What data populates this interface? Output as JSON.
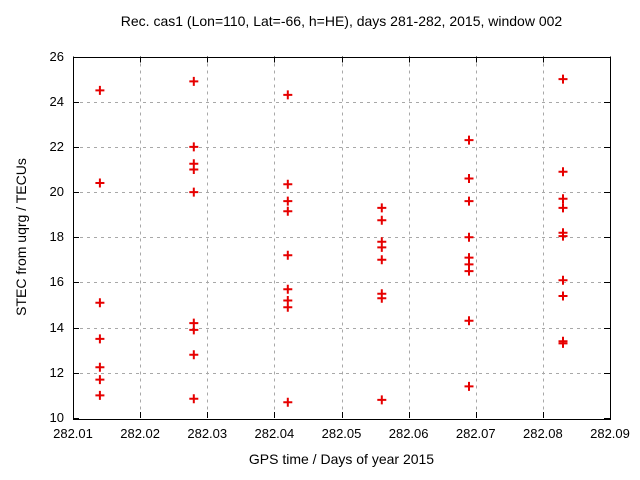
{
  "title": "Rec. cas1 (Lon=110, Lat=-66, h=HE), days 281-282, 2015, window 002",
  "colors": {
    "marker": "#e60000",
    "grid": "#a8a8a8",
    "axis": "#000000",
    "background": "#ffffff"
  },
  "chart_data": {
    "type": "scatter",
    "title": "Rec. cas1 (Lon=110, Lat=-66, h=HE), days 281-282, 2015, window 002",
    "xlabel": "GPS time / Days of year 2015",
    "ylabel": "STEC from uqrg / TECUs",
    "xlim": [
      282.01,
      282.09
    ],
    "ylim": [
      10,
      26
    ],
    "xticks": [
      282.01,
      282.02,
      282.03,
      282.04,
      282.05,
      282.06,
      282.07,
      282.08,
      282.09
    ],
    "xtick_labels": [
      "282.01",
      "282.02",
      "282.03",
      "282.04",
      "282.05",
      "282.06",
      "282.07",
      "282.08",
      "282.09"
    ],
    "yticks": [
      10,
      12,
      14,
      16,
      18,
      20,
      22,
      24,
      26
    ],
    "ytick_labels": [
      "10",
      "12",
      "14",
      "16",
      "18",
      "20",
      "22",
      "24",
      "26"
    ],
    "grid": true,
    "legend": "none",
    "marker": "plus",
    "marker_color": "#e60000",
    "series": [
      {
        "x": 282.014,
        "values": [
          24.5,
          20.4,
          15.1,
          13.5,
          12.25,
          11.7,
          11.0
        ]
      },
      {
        "x": 282.028,
        "values": [
          24.9,
          22.0,
          21.25,
          21.0,
          20.0,
          14.2,
          13.9,
          12.8,
          10.85
        ]
      },
      {
        "x": 282.042,
        "values": [
          24.3,
          20.35,
          19.6,
          19.15,
          17.2,
          15.7,
          15.2,
          14.9,
          10.7
        ]
      },
      {
        "x": 282.056,
        "values": [
          19.3,
          18.75,
          17.8,
          17.55,
          17.0,
          15.5,
          15.3,
          10.8
        ]
      },
      {
        "x": 282.069,
        "values": [
          22.3,
          20.6,
          19.6,
          18.0,
          17.1,
          16.8,
          16.5,
          14.3,
          11.4
        ]
      },
      {
        "x": 282.083,
        "values": [
          25.0,
          20.9,
          19.7,
          19.3,
          18.2,
          18.05,
          16.1,
          15.4,
          13.4,
          13.3
        ]
      }
    ]
  }
}
